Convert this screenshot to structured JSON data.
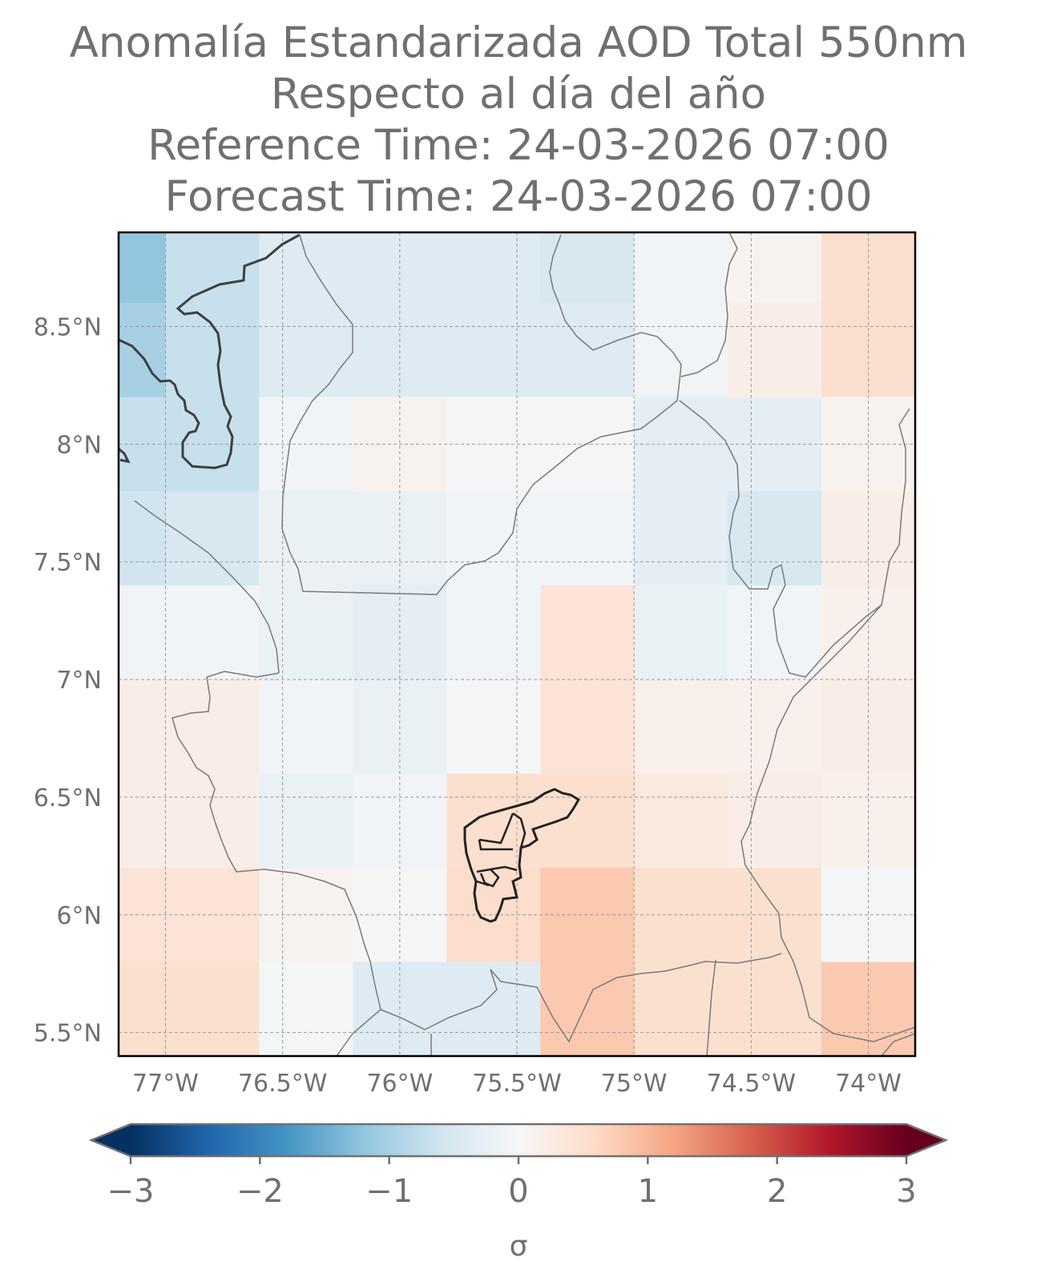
{
  "title_lines": [
    "Anomalía Estandarizada AOD Total 550nm",
    "Respecto al día del año",
    "Reference Time: 24-03-2026 07:00",
    "Forecast Time: 24-03-2026 07:00"
  ],
  "chart_data": {
    "type": "heatmap",
    "lon_range": [
      -77.2,
      -73.8
    ],
    "lat_range": [
      5.4,
      8.9
    ],
    "lon_ticks": [
      -77,
      -76.5,
      -76,
      -75.5,
      -75,
      -74.5,
      -74
    ],
    "lon_tick_labels": [
      "77°W",
      "76.5°W",
      "76°W",
      "75.5°W",
      "75°W",
      "74.5°W",
      "74°W"
    ],
    "lat_ticks": [
      5.5,
      6,
      6.5,
      7,
      7.5,
      8,
      8.5
    ],
    "lat_tick_labels": [
      "5.5°N",
      "6°N",
      "6.5°N",
      "7°N",
      "7.5°N",
      "8°N",
      "8.5°N"
    ],
    "grid": true,
    "cell_lon_edges": [
      -77.2,
      -77.0,
      -76.6,
      -76.2,
      -75.8,
      -75.4,
      -75.0,
      -74.6,
      -74.2,
      -73.8
    ],
    "cell_lat_edges": [
      8.9,
      8.6,
      8.2,
      7.8,
      7.4,
      7.0,
      6.6,
      6.2,
      5.8,
      5.4
    ],
    "anomaly_grid": [
      [
        -1.2,
        -0.7,
        -0.4,
        -0.4,
        -0.4,
        -0.5,
        -0.1,
        0.1,
        0.5
      ],
      [
        -1.0,
        -0.7,
        -0.4,
        -0.4,
        -0.4,
        -0.4,
        -0.1,
        0.2,
        0.5
      ],
      [
        -0.7,
        -0.7,
        -0.1,
        0.1,
        -0.05,
        -0.05,
        -0.3,
        -0.3,
        0.1
      ],
      [
        -0.6,
        -0.5,
        -0.2,
        -0.2,
        -0.1,
        -0.1,
        -0.3,
        -0.5,
        0.2
      ],
      [
        -0.1,
        -0.1,
        -0.2,
        -0.3,
        -0.1,
        0.4,
        -0.2,
        -0.1,
        0.15
      ],
      [
        0.2,
        0.2,
        -0.1,
        -0.2,
        -0.05,
        0.4,
        0.15,
        0.15,
        0.2
      ],
      [
        0.2,
        0.2,
        -0.2,
        -0.1,
        0.5,
        0.5,
        0.3,
        0.2,
        0.15
      ],
      [
        0.4,
        0.4,
        0.1,
        -0.05,
        0.55,
        0.8,
        0.5,
        0.5,
        -0.05
      ],
      [
        0.5,
        0.5,
        -0.05,
        -0.4,
        -0.4,
        0.8,
        0.5,
        0.5,
        0.8
      ]
    ],
    "colorbar": {
      "colormap": "RdBu_r",
      "range": [
        -3,
        3
      ],
      "extend": "both",
      "ticks": [
        -3,
        -2,
        -1,
        0,
        1,
        2,
        3
      ],
      "tick_labels": [
        "−3",
        "−2",
        "−1",
        "0",
        "1",
        "2",
        "3"
      ],
      "label": "σ",
      "stops": [
        "#053061",
        "#2166ac",
        "#4393c3",
        "#92c5de",
        "#d1e5f0",
        "#f7f7f7",
        "#fddbc7",
        "#f4a582",
        "#d6604d",
        "#b2182b",
        "#67001f"
      ]
    }
  },
  "colors": {
    "text": "#707070",
    "grid": "#9a9a9a",
    "coastline": "#404040",
    "borders": "#7a7a7a",
    "highlight_outline": "#222222"
  }
}
